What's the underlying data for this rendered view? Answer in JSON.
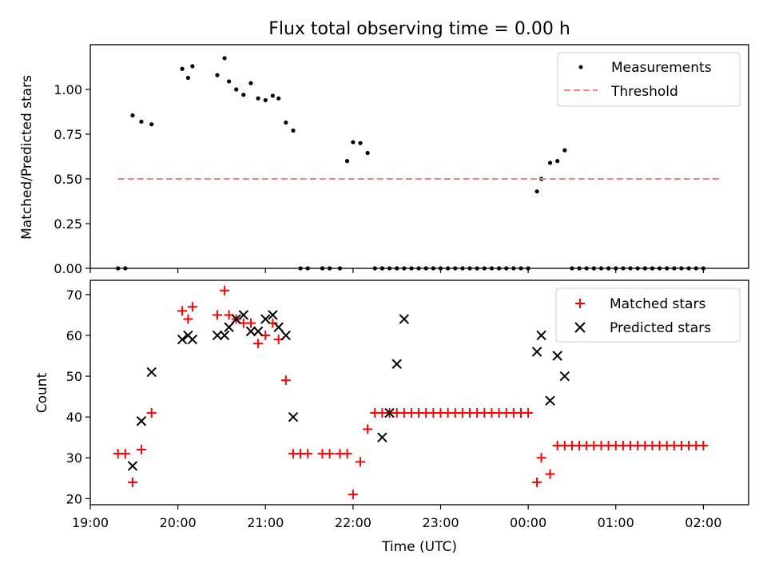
{
  "chart_data": [
    {
      "type": "scatter",
      "title": "Flux total observing time = 0.00 h",
      "xlabel": "",
      "ylabel": "Matched/Predicted stars",
      "xlim": [
        "19:00",
        "02:31"
      ],
      "ylim": [
        0,
        1.25
      ],
      "yticks": [
        "0.00",
        "0.25",
        "0.50",
        "0.75",
        "1.00"
      ],
      "legend": "top-right",
      "series": [
        {
          "name": "Measurements",
          "color": "#000000",
          "marker": "dot",
          "x": [
            "19:19",
            "19:24",
            "19:29",
            "19:35",
            "19:42",
            "20:03",
            "20:07",
            "20:10",
            "20:27",
            "20:32",
            "20:35",
            "20:40",
            "20:45",
            "20:50",
            "20:55",
            "21:00",
            "21:05",
            "21:09",
            "21:14",
            "21:19",
            "21:24",
            "21:29",
            "21:39",
            "21:44",
            "21:51",
            "21:56",
            "22:00",
            "22:05",
            "22:10",
            "22:15",
            "22:20",
            "22:25",
            "22:30",
            "22:35",
            "22:40",
            "22:45",
            "22:50",
            "22:55",
            "23:00",
            "23:05",
            "23:10",
            "23:15",
            "23:20",
            "23:25",
            "23:30",
            "23:35",
            "23:40",
            "23:45",
            "23:50",
            "23:55",
            "00:00",
            "00:06",
            "00:09",
            "00:15",
            "00:20",
            "00:25",
            "00:30",
            "00:35",
            "00:40",
            "00:45",
            "00:50",
            "00:55",
            "01:00",
            "01:05",
            "01:10",
            "01:15",
            "01:20",
            "01:25",
            "01:30",
            "01:35",
            "01:40",
            "01:45",
            "01:50",
            "01:55",
            "02:00"
          ],
          "y": [
            0,
            0,
            0.855,
            0.82,
            0.805,
            1.115,
            1.065,
            1.13,
            1.08,
            1.175,
            1.045,
            1.0,
            0.97,
            1.035,
            0.95,
            0.94,
            0.965,
            0.95,
            0.815,
            0.77,
            0,
            0,
            0,
            0,
            0,
            0.6,
            0.705,
            0.7,
            0.645,
            0,
            0,
            0,
            0,
            0,
            0,
            0,
            0,
            0,
            0,
            0,
            0,
            0,
            0,
            0,
            0,
            0,
            0,
            0,
            0,
            0,
            0,
            0.43,
            0.5,
            0.59,
            0.6,
            0.66,
            0,
            0,
            0,
            0,
            0,
            0,
            0,
            0,
            0,
            0,
            0,
            0,
            0,
            0,
            0,
            0,
            0,
            0,
            0
          ]
        },
        {
          "name": "Threshold",
          "color": "#ff7f7f",
          "style": "dashed",
          "x": [
            "19:19",
            "02:11"
          ],
          "y": [
            0.5,
            0.5
          ]
        }
      ]
    },
    {
      "type": "scatter",
      "title": "",
      "xlabel": "Time (UTC)",
      "ylabel": "Count",
      "xlim": [
        "19:00",
        "02:31"
      ],
      "ylim": [
        18.5,
        73.5
      ],
      "xticks": [
        "19:00",
        "20:00",
        "21:00",
        "22:00",
        "23:00",
        "00:00",
        "01:00",
        "02:00"
      ],
      "yticks": [
        "20",
        "30",
        "40",
        "50",
        "60",
        "70"
      ],
      "legend": "top-right",
      "series": [
        {
          "name": "Matched stars",
          "color": "#ff0000",
          "marker": "plus",
          "x": [
            "19:19",
            "19:24",
            "19:29",
            "19:35",
            "19:42",
            "20:03",
            "20:07",
            "20:10",
            "20:27",
            "20:32",
            "20:35",
            "20:40",
            "20:45",
            "20:50",
            "20:55",
            "21:00",
            "21:05",
            "21:09",
            "21:14",
            "21:19",
            "21:24",
            "21:29",
            "21:39",
            "21:44",
            "21:51",
            "21:56",
            "22:00",
            "22:05",
            "22:10",
            "22:15",
            "22:20",
            "22:25",
            "22:30",
            "22:35",
            "22:40",
            "22:45",
            "22:50",
            "22:55",
            "23:00",
            "23:05",
            "23:10",
            "23:15",
            "23:20",
            "23:25",
            "23:30",
            "23:35",
            "23:40",
            "23:45",
            "23:50",
            "23:55",
            "00:00",
            "00:06",
            "00:09",
            "00:15",
            "00:20",
            "00:25",
            "00:30",
            "00:35",
            "00:40",
            "00:45",
            "00:50",
            "00:55",
            "01:00",
            "01:05",
            "01:10",
            "01:15",
            "01:20",
            "01:25",
            "01:30",
            "01:35",
            "01:40",
            "01:45",
            "01:50",
            "01:55",
            "02:00"
          ],
          "y": [
            31,
            31,
            24,
            32,
            41,
            66,
            64,
            67,
            65,
            71,
            65,
            64,
            63,
            63,
            58,
            60,
            63,
            59,
            49,
            31,
            31,
            31,
            31,
            31,
            31,
            31,
            21,
            29,
            37,
            41,
            41,
            41,
            41,
            41,
            41,
            41,
            41,
            41,
            41,
            41,
            41,
            41,
            41,
            41,
            41,
            41,
            41,
            41,
            41,
            41,
            41,
            24,
            30,
            26,
            33,
            33,
            33,
            33,
            33,
            33,
            33,
            33,
            33,
            33,
            33,
            33,
            33,
            33,
            33,
            33,
            33,
            33,
            33,
            33,
            33
          ]
        },
        {
          "name": "Predicted stars",
          "color": "#000000",
          "marker": "x",
          "x": [
            "19:29",
            "19:35",
            "19:42",
            "20:03",
            "20:07",
            "20:10",
            "20:27",
            "20:32",
            "20:35",
            "20:40",
            "20:45",
            "20:50",
            "20:55",
            "21:00",
            "21:05",
            "21:09",
            "21:14",
            "21:19",
            "22:20",
            "22:25",
            "22:30",
            "22:35",
            "00:06",
            "00:09",
            "00:15",
            "00:20",
            "00:25"
          ],
          "y": [
            28,
            39,
            51,
            59,
            60,
            59,
            60,
            60,
            62,
            64,
            65,
            61,
            61,
            64,
            65,
            62,
            60,
            40,
            35,
            41,
            53,
            64,
            56,
            60,
            44,
            55,
            50
          ]
        }
      ]
    }
  ]
}
